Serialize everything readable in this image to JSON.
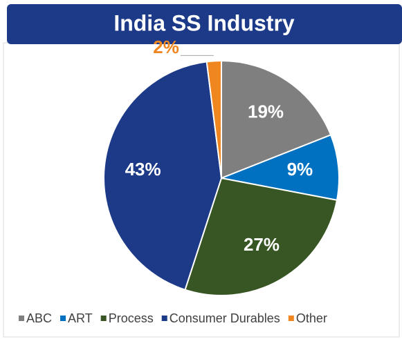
{
  "chart_data": {
    "type": "pie",
    "title": "India SS Industry",
    "categories": [
      "ABC",
      "ART",
      "Process",
      "Consumer Durables",
      "Other"
    ],
    "values": [
      19,
      9,
      27,
      43,
      2
    ],
    "value_labels": [
      "19%",
      "9%",
      "27%",
      "43%",
      "2%"
    ],
    "colors": [
      "#7f7f7f",
      "#0070c0",
      "#375623",
      "#1c3a87",
      "#f0861f"
    ],
    "legend": "bottom"
  }
}
